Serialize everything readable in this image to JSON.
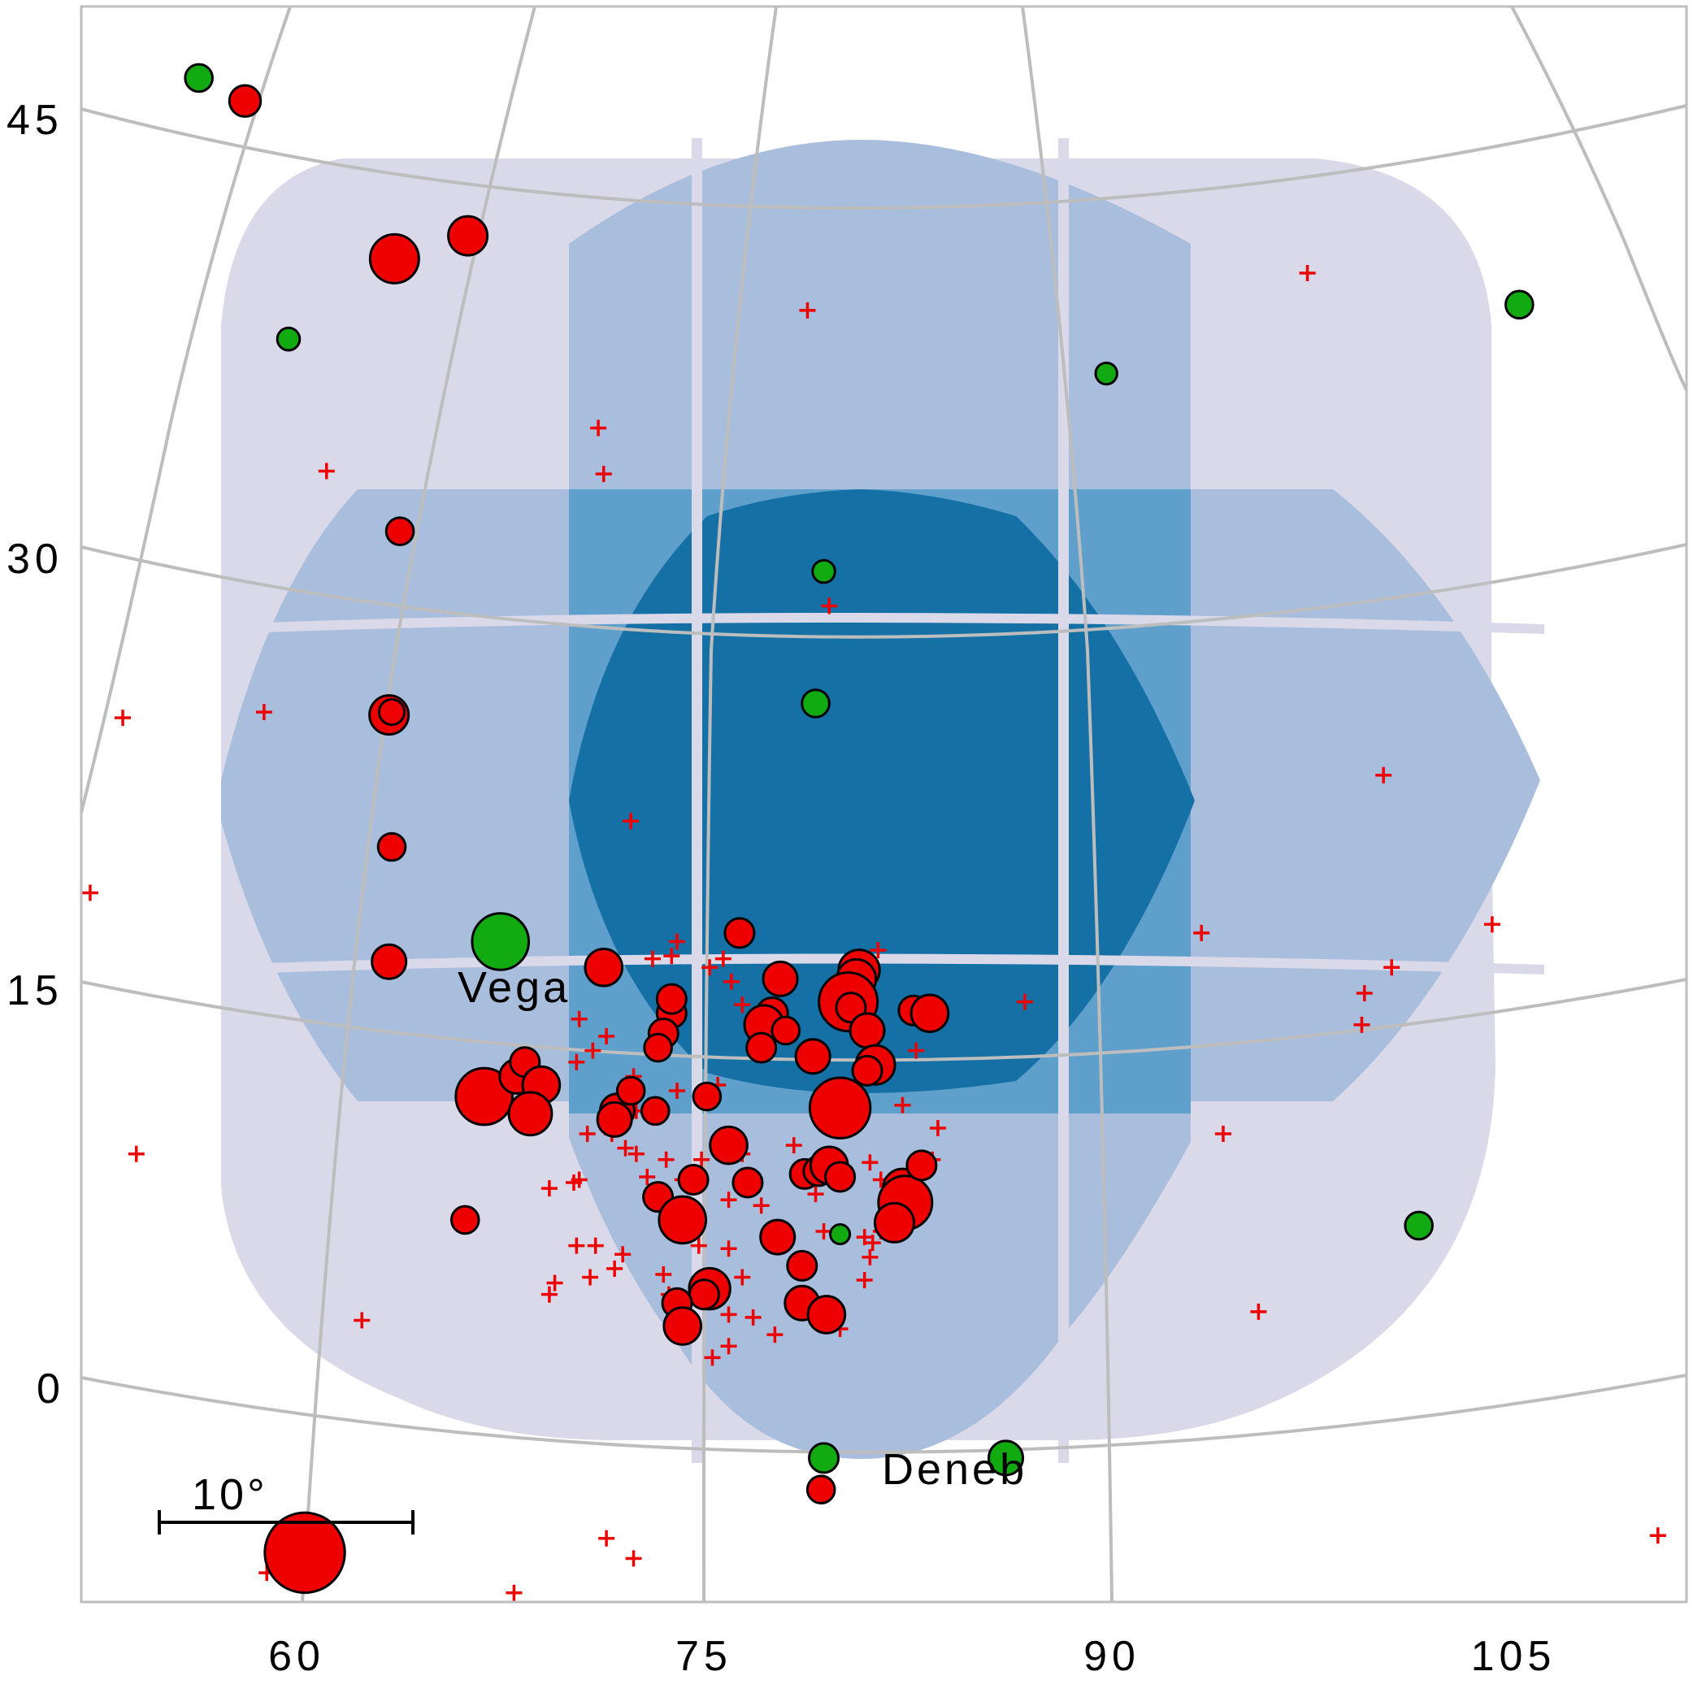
{
  "chart_data": {
    "type": "scatter",
    "title": "",
    "xlabel": "",
    "ylabel": "",
    "x_ticks": [
      "60",
      "75",
      "90",
      "105"
    ],
    "y_ticks": [
      "45",
      "30",
      "15",
      "0"
    ],
    "xlim": [
      51,
      112
    ],
    "ylim": [
      -8,
      48
    ],
    "grid": true,
    "legend": "none",
    "colors": {
      "coverage_1": "#dad9ea",
      "coverage_2": "#a9bedc",
      "coverage_3": "#5e9fcb",
      "coverage_4": "#1570a5",
      "gridline": "#bdbdbd",
      "red_marker": "#ee0000",
      "green_marker": "#11aa11"
    },
    "annotations": [
      {
        "text": "Vega",
        "x": 66.5,
        "y": 14.4
      },
      {
        "text": "Deneb",
        "x": 85.5,
        "y": -3.3
      }
    ],
    "scale_bar": {
      "label": "10°"
    },
    "series": [
      {
        "marker": "green-circle",
        "points": [
          [
            56.4,
            46.8,
            1.8
          ],
          [
            59.7,
            37.7,
            1.3
          ],
          [
            67.5,
            16.7,
            4.8
          ],
          [
            79.4,
            29.6,
            1.3
          ],
          [
            79.1,
            25.0,
            1.8
          ],
          [
            89.8,
            36.5,
            1.2
          ],
          [
            105.0,
            38.9,
            1.8
          ],
          [
            101.3,
            6.8,
            1.8
          ],
          [
            86.1,
            -1.3,
            2.5
          ],
          [
            79.4,
            -1.3,
            2.0
          ],
          [
            80.0,
            6.5,
            1.0
          ]
        ]
      },
      {
        "marker": "red-circle",
        "points": [
          [
            58.1,
            46.0,
            2.2
          ],
          [
            63.6,
            40.5,
            4.0
          ],
          [
            66.3,
            41.3,
            3.0
          ],
          [
            63.8,
            31.0,
            1.8
          ],
          [
            63.4,
            24.6,
            3.0
          ],
          [
            63.5,
            24.7,
            1.6
          ],
          [
            63.5,
            20.0,
            1.8
          ],
          [
            63.4,
            16.0,
            2.5
          ],
          [
            66.9,
            11.3,
            4.8
          ],
          [
            68.1,
            12.0,
            2.5
          ],
          [
            68.4,
            12.5,
            2.0
          ],
          [
            69.0,
            11.7,
            2.8
          ],
          [
            68.6,
            10.7,
            3.4
          ],
          [
            71.3,
            15.8,
            2.8
          ],
          [
            71.8,
            10.8,
            2.5
          ],
          [
            72.3,
            11.5,
            1.8
          ],
          [
            71.7,
            10.5,
            2.5
          ],
          [
            73.2,
            10.8,
            1.8
          ],
          [
            73.8,
            14.2,
            2.0
          ],
          [
            73.8,
            14.7,
            2.0
          ],
          [
            73.5,
            13.5,
            2.0
          ],
          [
            73.3,
            13.0,
            1.8
          ],
          [
            75.1,
            11.3,
            1.8
          ],
          [
            76.3,
            17.0,
            2.0
          ],
          [
            77.8,
            15.4,
            2.5
          ],
          [
            77.5,
            14.2,
            2.2
          ],
          [
            77.2,
            13.8,
            3.0
          ],
          [
            78.0,
            13.6,
            1.8
          ],
          [
            77.1,
            13.0,
            2.0
          ],
          [
            79.0,
            12.7,
            2.5
          ],
          [
            80.7,
            15.7,
            3.2
          ],
          [
            80.6,
            15.4,
            3.0
          ],
          [
            80.3,
            14.6,
            5.0
          ],
          [
            80.4,
            14.4,
            2.0
          ],
          [
            81.0,
            13.6,
            2.5
          ],
          [
            81.3,
            12.4,
            3.0
          ],
          [
            81.0,
            12.2,
            2.0
          ],
          [
            82.7,
            14.3,
            2.0
          ],
          [
            83.3,
            14.2,
            2.8
          ],
          [
            80.0,
            10.9,
            5.2
          ],
          [
            75.9,
            9.6,
            2.8
          ],
          [
            76.6,
            8.3,
            2.0
          ],
          [
            74.6,
            8.4,
            2.0
          ],
          [
            73.3,
            7.8,
            2.0
          ],
          [
            74.2,
            7.0,
            3.8
          ],
          [
            78.7,
            8.6,
            2.0
          ],
          [
            79.2,
            8.7,
            2.0
          ],
          [
            79.6,
            8.9,
            2.8
          ],
          [
            80.0,
            8.5,
            2.0
          ],
          [
            82.3,
            8.1,
            3.0
          ],
          [
            82.4,
            7.6,
            4.5
          ],
          [
            82.0,
            6.9,
            3.0
          ],
          [
            83.0,
            8.9,
            2.0
          ],
          [
            77.7,
            6.4,
            2.5
          ],
          [
            78.6,
            5.4,
            2.0
          ],
          [
            75.2,
            4.6,
            3.2
          ],
          [
            75.0,
            4.4,
            2.0
          ],
          [
            74.0,
            4.1,
            2.0
          ],
          [
            74.2,
            3.3,
            2.8
          ],
          [
            78.6,
            4.1,
            2.5
          ],
          [
            79.5,
            3.7,
            2.8
          ],
          [
            79.3,
            -2.4,
            1.8
          ],
          [
            66.2,
            7.0,
            1.8
          ],
          [
            60.3,
            -4.6,
            7.2
          ]
        ]
      },
      {
        "marker": "red-plus",
        "points": [
          [
            97.2,
            40.0
          ],
          [
            78.8,
            38.7
          ],
          [
            71.1,
            34.6
          ],
          [
            71.3,
            33.0
          ],
          [
            61.1,
            33.1
          ],
          [
            51.3,
            26.3
          ],
          [
            53.6,
            24.5
          ],
          [
            58.8,
            24.7
          ],
          [
            79.6,
            28.4
          ],
          [
            52.4,
            18.4
          ],
          [
            72.3,
            20.9
          ],
          [
            100.0,
            22.5
          ],
          [
            68.0,
            16.9
          ],
          [
            74.0,
            16.7
          ],
          [
            73.1,
            16.1
          ],
          [
            73.8,
            16.2
          ],
          [
            75.2,
            15.8
          ],
          [
            75.7,
            16.1
          ],
          [
            76.0,
            15.3
          ],
          [
            76.4,
            14.5
          ],
          [
            77.0,
            14.0
          ],
          [
            80.0,
            15.4
          ],
          [
            80.9,
            15.2
          ],
          [
            81.4,
            16.4
          ],
          [
            82.9,
            14.0
          ],
          [
            82.8,
            12.9
          ],
          [
            86.8,
            14.6
          ],
          [
            93.3,
            17.0
          ],
          [
            99.3,
            14.9
          ],
          [
            100.3,
            15.8
          ],
          [
            104.0,
            17.3
          ],
          [
            70.4,
            14.0
          ],
          [
            71.4,
            13.4
          ],
          [
            70.9,
            12.9
          ],
          [
            70.3,
            12.5
          ],
          [
            72.4,
            12.0
          ],
          [
            74.0,
            11.5
          ],
          [
            75.5,
            11.7
          ],
          [
            72.5,
            10.8
          ],
          [
            71.6,
            10.0
          ],
          [
            70.7,
            10.0
          ],
          [
            72.1,
            9.5
          ],
          [
            72.5,
            9.3
          ],
          [
            73.6,
            9.1
          ],
          [
            74.9,
            9.1
          ],
          [
            76.4,
            9.3
          ],
          [
            78.3,
            9.6
          ],
          [
            79.4,
            8.8
          ],
          [
            81.1,
            9.0
          ],
          [
            83.4,
            9.1
          ],
          [
            83.6,
            10.2
          ],
          [
            82.3,
            11.0
          ],
          [
            69.3,
            8.1
          ],
          [
            70.2,
            8.3
          ],
          [
            70.4,
            8.4
          ],
          [
            72.9,
            8.5
          ],
          [
            74.2,
            8.4
          ],
          [
            74.6,
            7.3
          ],
          [
            75.9,
            7.7
          ],
          [
            77.1,
            7.5
          ],
          [
            79.1,
            7.9
          ],
          [
            81.5,
            8.4
          ],
          [
            82.7,
            7.9
          ],
          [
            70.3,
            6.1
          ],
          [
            71.0,
            6.1
          ],
          [
            72.0,
            5.8
          ],
          [
            74.8,
            6.1
          ],
          [
            75.9,
            6.0
          ],
          [
            79.4,
            6.6
          ],
          [
            80.9,
            6.4
          ],
          [
            81.2,
            6.2
          ],
          [
            81.5,
            6.6
          ],
          [
            81.1,
            5.7
          ],
          [
            69.3,
            4.4
          ],
          [
            69.5,
            4.8
          ],
          [
            70.8,
            5.0
          ],
          [
            71.7,
            5.3
          ],
          [
            73.5,
            5.1
          ],
          [
            73.7,
            4.4
          ],
          [
            75.6,
            4.8
          ],
          [
            76.4,
            5.0
          ],
          [
            80.9,
            4.9
          ],
          [
            75.9,
            3.7
          ],
          [
            76.8,
            3.6
          ],
          [
            75.9,
            2.6
          ],
          [
            75.3,
            2.2
          ],
          [
            77.6,
            3.0
          ],
          [
            80.0,
            3.2
          ],
          [
            62.4,
            3.5
          ],
          [
            54.1,
            9.3
          ],
          [
            94.1,
            10.0
          ],
          [
            95.4,
            3.8
          ],
          [
            68.0,
            -6.0
          ],
          [
            71.4,
            -4.1
          ],
          [
            72.4,
            -4.8
          ],
          [
            58.9,
            -5.3
          ],
          [
            99.2,
            13.8
          ],
          [
            110.1,
            -4.0
          ]
        ]
      }
    ]
  }
}
